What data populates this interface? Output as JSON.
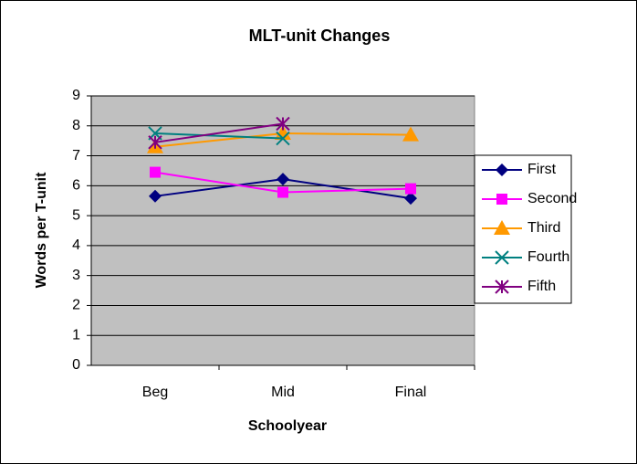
{
  "chart_data": {
    "type": "line",
    "title": "MLT-unit Changes",
    "xlabel": "Schoolyear",
    "ylabel": "Words per T-unit",
    "categories": [
      "Beg",
      "Mid",
      "Final"
    ],
    "series": [
      {
        "name": "First",
        "color": "#000080",
        "marker": "diamond",
        "values": [
          5.65,
          6.22,
          5.58
        ]
      },
      {
        "name": "Second",
        "color": "#ff00ff",
        "marker": "square",
        "values": [
          6.45,
          5.78,
          5.9
        ]
      },
      {
        "name": "Third",
        "color": "#ff9900",
        "marker": "triangle",
        "values": [
          7.3,
          7.75,
          7.7
        ]
      },
      {
        "name": "Fourth",
        "color": "#008080",
        "marker": "x",
        "values": [
          7.75,
          7.58,
          null
        ]
      },
      {
        "name": "Fifth",
        "color": "#800080",
        "marker": "star",
        "values": [
          7.45,
          8.07,
          null
        ]
      }
    ],
    "ylim": [
      0,
      9
    ],
    "yticks": [
      0,
      1,
      2,
      3,
      4,
      5,
      6,
      7,
      8,
      9
    ],
    "grid": true,
    "legend": "right"
  }
}
